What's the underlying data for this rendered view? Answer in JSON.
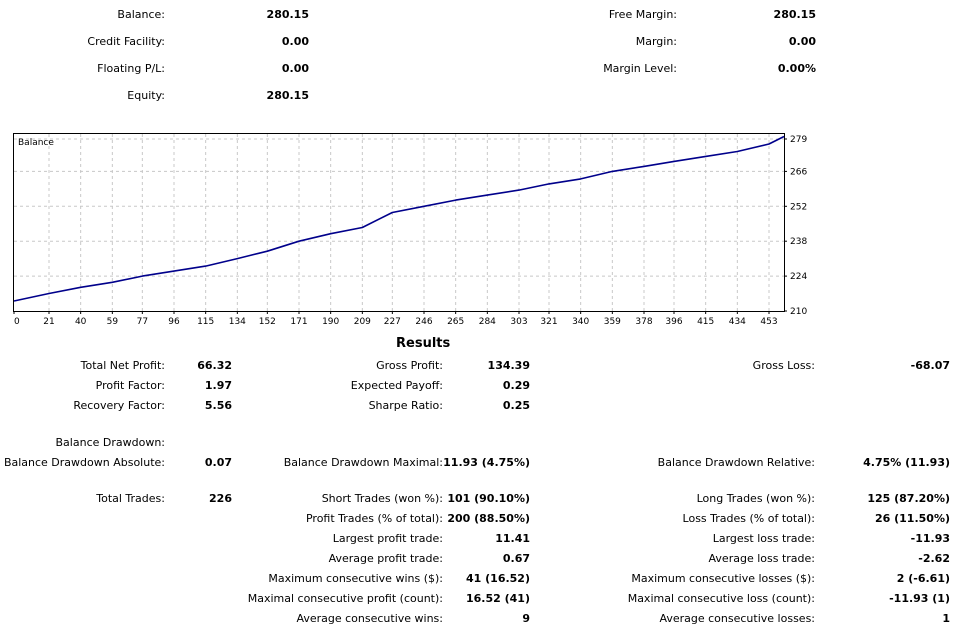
{
  "summary": {
    "balance_label": "Balance:",
    "balance_value": "280.15",
    "credit_label": "Credit Facility:",
    "credit_value": "0.00",
    "floating_label": "Floating P/L:",
    "floating_value": "0.00",
    "equity_label": "Equity:",
    "equity_value": "280.15",
    "free_margin_label": "Free Margin:",
    "free_margin_value": "280.15",
    "margin_label": "Margin:",
    "margin_value": "0.00",
    "margin_level_label": "Margin Level:",
    "margin_level_value": "0.00%"
  },
  "chart_data": {
    "type": "line",
    "title": "Balance",
    "xlabel": "",
    "ylabel": "",
    "x_ticks": [
      "0",
      "21",
      "40",
      "59",
      "77",
      "96",
      "115",
      "134",
      "152",
      "171",
      "190",
      "209",
      "227",
      "246",
      "265",
      "284",
      "303",
      "321",
      "340",
      "359",
      "378",
      "396",
      "415",
      "434",
      "453"
    ],
    "y_ticks": [
      "210",
      "224",
      "238",
      "252",
      "266",
      "279"
    ],
    "xlim": [
      0,
      462
    ],
    "ylim": [
      210,
      281
    ],
    "grid": true,
    "series": [
      {
        "color": "#00008b",
        "x": [
          0,
          21,
          40,
          59,
          77,
          96,
          115,
          134,
          152,
          171,
          190,
          209,
          227,
          246,
          265,
          284,
          303,
          321,
          340,
          359,
          378,
          396,
          415,
          434,
          453,
          462
        ],
        "y": [
          214,
          217,
          219.5,
          221.5,
          224,
          226,
          228,
          231,
          234,
          238,
          241,
          243.5,
          249.5,
          252,
          254.5,
          256.5,
          258.5,
          261,
          263,
          266,
          268,
          270,
          272,
          274,
          277,
          280
        ]
      }
    ]
  },
  "results": {
    "heading": "Results",
    "total_net_profit_label": "Total Net Profit:",
    "total_net_profit_value": "66.32",
    "gross_profit_label": "Gross Profit:",
    "gross_profit_value": "134.39",
    "gross_loss_label": "Gross Loss:",
    "gross_loss_value": "-68.07",
    "profit_factor_label": "Profit Factor:",
    "profit_factor_value": "1.97",
    "expected_payoff_label": "Expected Payoff:",
    "expected_payoff_value": "0.29",
    "recovery_factor_label": "Recovery Factor:",
    "recovery_factor_value": "5.56",
    "sharpe_ratio_label": "Sharpe Ratio:",
    "sharpe_ratio_value": "0.25",
    "balance_drawdown_label": "Balance Drawdown:",
    "bd_absolute_label": "Balance Drawdown Absolute:",
    "bd_absolute_value": "0.07",
    "bd_maximal_label": "Balance Drawdown Maximal:",
    "bd_maximal_value": "11.93 (4.75%)",
    "bd_relative_label": "Balance Drawdown Relative:",
    "bd_relative_value": "4.75% (11.93)",
    "total_trades_label": "Total Trades:",
    "total_trades_value": "226",
    "short_trades_label": "Short Trades (won %):",
    "short_trades_value": "101 (90.10%)",
    "long_trades_label": "Long Trades (won %):",
    "long_trades_value": "125 (87.20%)",
    "profit_trades_label": "Profit Trades (% of total):",
    "profit_trades_value": "200 (88.50%)",
    "loss_trades_label": "Loss Trades (% of total):",
    "loss_trades_value": "26 (11.50%)",
    "largest_profit_label": "Largest profit trade:",
    "largest_profit_value": "11.41",
    "largest_loss_label": "Largest loss trade:",
    "largest_loss_value": "-11.93",
    "avg_profit_label": "Average profit trade:",
    "avg_profit_value": "0.67",
    "avg_loss_label": "Average loss trade:",
    "avg_loss_value": "-2.62",
    "max_cons_wins_label": "Maximum consecutive wins ($):",
    "max_cons_wins_value": "41 (16.52)",
    "max_cons_losses_label": "Maximum consecutive losses ($):",
    "max_cons_losses_value": "2 (-6.61)",
    "maximal_cons_profit_label": "Maximal consecutive profit (count):",
    "maximal_cons_profit_value": "16.52 (41)",
    "maximal_cons_loss_label": "Maximal consecutive loss (count):",
    "maximal_cons_loss_value": "-11.93 (1)",
    "avg_cons_wins_label": "Average consecutive wins:",
    "avg_cons_wins_value": "9",
    "avg_cons_losses_label": "Average consecutive losses:",
    "avg_cons_losses_value": "1"
  }
}
